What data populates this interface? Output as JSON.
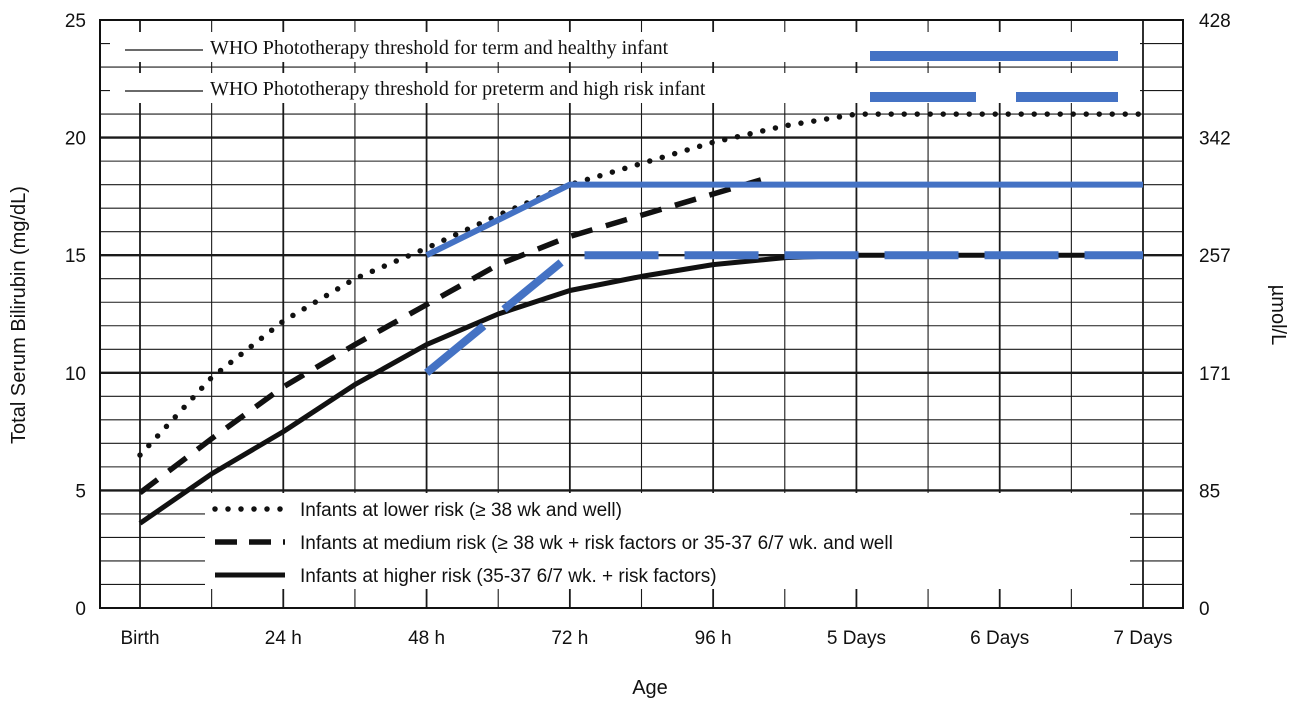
{
  "chart_data": {
    "type": "line",
    "title": "",
    "xlabel": "Age",
    "ylabel": "Total Serum Bilirubin (mg/dL)",
    "ylabel_right": "µmol/L",
    "x_tick_labels": [
      "Birth",
      "24 h",
      "48 h",
      "72 h",
      "96 h",
      "5 Days",
      "6 Days",
      "7 Days"
    ],
    "x_unit": "hours",
    "xlim": [
      0,
      168
    ],
    "ylim": [
      0,
      25
    ],
    "y_ticks": [
      0,
      5,
      10,
      15,
      20,
      25
    ],
    "y_right_ticks": [
      "0",
      "85",
      "171",
      "257",
      "342",
      "428"
    ],
    "grid": true,
    "series": [
      {
        "name": "Infants at lower risk (≥ 38 wk and well)",
        "style": "dotted",
        "color": "#111111",
        "x": [
          0,
          12,
          24,
          36,
          48,
          60,
          72,
          84,
          96,
          108,
          120,
          132,
          144,
          156,
          168
        ],
        "y": [
          6.5,
          9.8,
          12.2,
          14.0,
          15.3,
          16.7,
          18.0,
          18.9,
          19.8,
          20.5,
          21.0,
          21.0,
          21.0,
          21.0,
          21.0
        ]
      },
      {
        "name": "Infants at medium risk (≥ 38 wk + risk factors or 35-37 6/7 wk. and well",
        "style": "dashed",
        "color": "#111111",
        "x": [
          0,
          12,
          24,
          36,
          48,
          60,
          72,
          84,
          96,
          104
        ],
        "y": [
          4.9,
          7.2,
          9.4,
          11.2,
          12.9,
          14.6,
          15.8,
          16.7,
          17.6,
          18.2
        ]
      },
      {
        "name": "Infants at higher risk (35-37 6/7 wk. + risk factors)",
        "style": "solid",
        "color": "#111111",
        "x": [
          0,
          12,
          24,
          36,
          48,
          60,
          72,
          84,
          96,
          108,
          120,
          132,
          144,
          156,
          168
        ],
        "y": [
          3.6,
          5.7,
          7.5,
          9.5,
          11.2,
          12.5,
          13.5,
          14.1,
          14.6,
          14.9,
          15.0,
          15.0,
          15.0,
          15.0,
          15.0
        ]
      },
      {
        "name": "WHO Phototherapy threshold for term and healthy infant",
        "style": "solid",
        "color": "#4472C4",
        "x": [
          48,
          72,
          168
        ],
        "y": [
          15.0,
          18.0,
          18.0
        ]
      },
      {
        "name": "WHO Phototherapy threshold for preterm and high risk infant",
        "style": "dashed",
        "color": "#4472C4",
        "x": [
          48,
          72,
          168
        ],
        "y": [
          10.0,
          15.0,
          15.0
        ]
      }
    ],
    "legends": [
      {
        "position": "top",
        "items": [
          {
            "label": "WHO Phototherapy threshold for term and healthy infant",
            "style": "solid",
            "color": "#4472C4"
          },
          {
            "label": "WHO Phototherapy threshold for preterm and high risk infant",
            "style": "dashed",
            "color": "#4472C4"
          }
        ]
      },
      {
        "position": "bottom",
        "items": [
          {
            "label": "Infants at lower risk (≥ 38 wk and well)",
            "style": "dotted",
            "color": "#111111"
          },
          {
            "label": "Infants at medium risk (≥ 38 wk + risk factors or 35-37 6/7 wk. and well",
            "style": "dashed",
            "color": "#111111"
          },
          {
            "label": "Infants at higher risk (35-37 6/7 wk. + risk factors)",
            "style": "solid",
            "color": "#111111"
          }
        ]
      }
    ]
  }
}
